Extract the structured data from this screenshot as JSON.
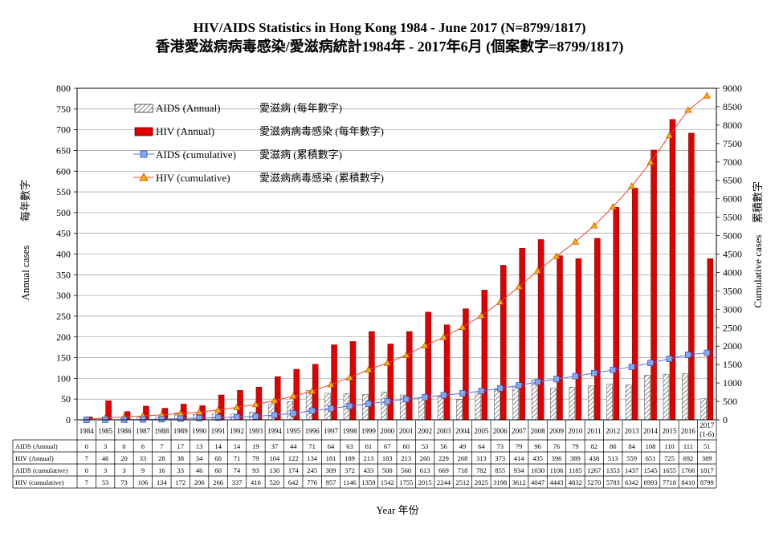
{
  "chart_data": {
    "type": "bar",
    "title": "HIV/AIDS  Statistics in Hong Kong 1984 - June 2017 (N=8799/1817)",
    "subtitle": "香港愛滋病病毒感染/愛滋病統計1984年 - 2017年6月 (個案數字=8799/1817)",
    "xlabel": "Year 年份",
    "ylabel_left": "Annual  cases",
    "ylabel_left_zh": "每年數字",
    "ylabel_right": "Cumulative  cases",
    "ylabel_right_zh": "累積數字",
    "ylim_left": [
      0,
      800
    ],
    "ylim_right": [
      0,
      9000
    ],
    "yticks_left": [
      "0",
      "50",
      "100",
      "150",
      "200",
      "250",
      "300",
      "350",
      "400",
      "450",
      "500",
      "550",
      "600",
      "650",
      "700",
      "750",
      "800"
    ],
    "yticks_right": [
      "0",
      "500",
      "1000",
      "1500",
      "2000",
      "2500",
      "3000",
      "3500",
      "4000",
      "4500",
      "5000",
      "5500",
      "6000",
      "6500",
      "7000",
      "7500",
      "8000",
      "8500",
      "9000"
    ],
    "grid": true,
    "categories": [
      "1984",
      "1985",
      "1986",
      "1987",
      "1988",
      "1989",
      "1990",
      "1991",
      "1992",
      "1993",
      "1994",
      "1995",
      "1996",
      "1997",
      "1998",
      "1999",
      "2000",
      "2001",
      "2002",
      "2003",
      "2004",
      "2005",
      "2006",
      "2007",
      "2008",
      "2009",
      "2010",
      "2011",
      "2012",
      "2013",
      "2014",
      "2015",
      "2016",
      "2017"
    ],
    "last_category_note": "(1-6)",
    "legend": [
      {
        "en": "AIDS (Annual)",
        "zh": "愛滋病 (每年數字)"
      },
      {
        "en": "HIV (Annual)",
        "zh": "愛滋病病毒感染 (每年數字)"
      },
      {
        "en": "AIDS (cumulative)",
        "zh": "愛滋病 (累積數字)"
      },
      {
        "en": "HIV (cumulative)",
        "zh": "愛滋病病毒感染 (累積數字)"
      }
    ],
    "series": [
      {
        "name": "AIDS (Annual)",
        "type": "bar",
        "axis": "left",
        "table_label": "AIDS (Annual)",
        "values": [
          0,
          3,
          0,
          6,
          7,
          17,
          13,
          14,
          14,
          19,
          37,
          44,
          71,
          64,
          63,
          61,
          67,
          60,
          53,
          56,
          49,
          64,
          73,
          79,
          96,
          76,
          79,
          82,
          86,
          84,
          108,
          110,
          111,
          51
        ]
      },
      {
        "name": "HIV (Annual)",
        "type": "bar",
        "axis": "left",
        "table_label": "HIV (Annual)",
        "values": [
          7,
          46,
          20,
          33,
          28,
          38,
          34,
          60,
          71,
          79,
          104,
          122,
          134,
          181,
          189,
          213,
          183,
          213,
          260,
          229,
          268,
          313,
          373,
          414,
          435,
          396,
          389,
          438,
          513,
          559,
          651,
          725,
          692,
          389
        ]
      },
      {
        "name": "AIDS (cumulative)",
        "type": "line",
        "axis": "right",
        "table_label": "AIDS (cumulative)",
        "values": [
          0,
          3,
          3,
          9,
          16,
          33,
          46,
          60,
          74,
          93,
          130,
          174,
          245,
          309,
          372,
          433,
          500,
          560,
          613,
          669,
          718,
          782,
          855,
          934,
          1030,
          1106,
          1185,
          1267,
          1353,
          1437,
          1545,
          1655,
          1766,
          1817
        ]
      },
      {
        "name": "HIV (cumulative)",
        "type": "line",
        "axis": "right",
        "table_label": "HIV (cumulative)",
        "values": [
          7,
          53,
          73,
          106,
          134,
          172,
          206,
          266,
          337,
          416,
          520,
          642,
          776,
          957,
          1146,
          1359,
          1542,
          1755,
          2015,
          2244,
          2512,
          2825,
          3198,
          3612,
          4047,
          4443,
          4832,
          5270,
          5783,
          6342,
          6993,
          7718,
          8410,
          8799
        ]
      }
    ],
    "colors": {
      "hiv_bar": "#e00000",
      "aids_line": "#4f6fd8",
      "hiv_line": "#e8442a",
      "hiv_marker": "#f4b400"
    }
  }
}
